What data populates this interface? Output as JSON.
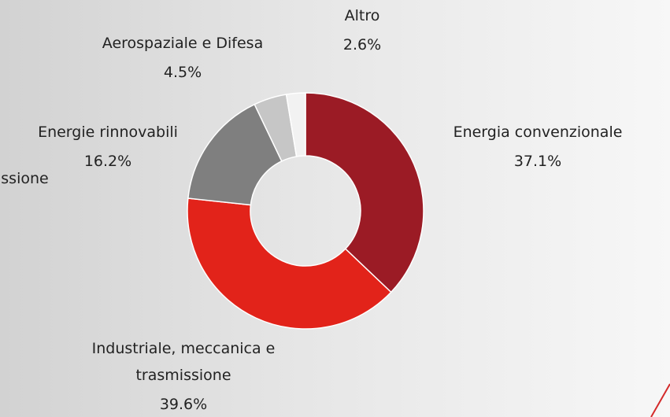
{
  "background_text": "issione",
  "chart_data": {
    "type": "donut",
    "categories": [
      "Energia convenzionale",
      "Industriale, meccanica e trasmissione",
      "Energie rinnovabili",
      "Aerospaziale e Difesa",
      "Altro"
    ],
    "values": [
      37.1,
      39.6,
      16.2,
      4.5,
      2.6
    ],
    "value_labels": [
      "37.1%",
      "39.6%",
      "16.2%",
      "4.5%",
      "2.6%"
    ],
    "colors": [
      "#9b1b25",
      "#e2231a",
      "#7f7f7f",
      "#c6c6c6",
      "#f2f2f2"
    ]
  }
}
